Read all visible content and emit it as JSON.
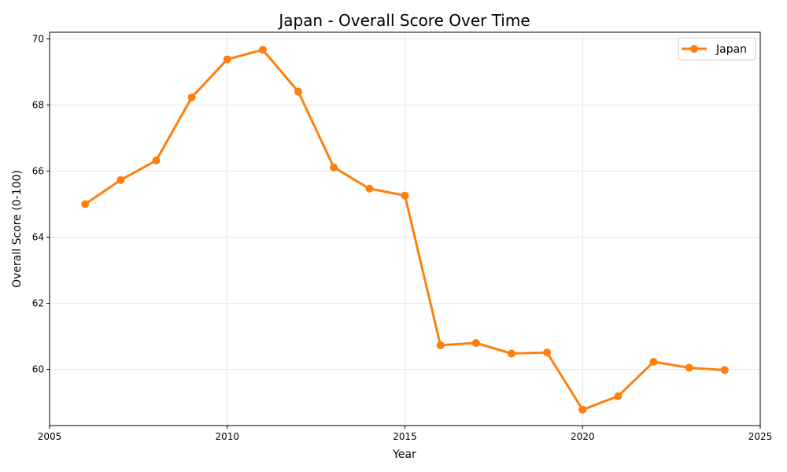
{
  "chart_data": {
    "type": "line",
    "title": "Japan - Overall Score Over Time",
    "xlabel": "Year",
    "ylabel": "Overall Score (0-100)",
    "xlim": [
      2005,
      2025
    ],
    "ylim": [
      58.3,
      70.2
    ],
    "xticks": [
      2005,
      2010,
      2015,
      2020,
      2025
    ],
    "yticks": [
      60,
      62,
      64,
      66,
      68,
      70
    ],
    "grid": true,
    "legend_position": "top-right",
    "series": [
      {
        "name": "Japan",
        "color": "#ff7f0e",
        "x": [
          2006,
          2007,
          2008,
          2009,
          2010,
          2011,
          2012,
          2013,
          2014,
          2015,
          2016,
          2017,
          2018,
          2019,
          2020,
          2021,
          2022,
          2023,
          2024
        ],
        "values": [
          65.0,
          65.73,
          66.32,
          68.23,
          69.38,
          69.67,
          68.4,
          66.11,
          65.47,
          65.26,
          60.73,
          60.8,
          60.48,
          60.51,
          58.78,
          59.19,
          60.23,
          60.05,
          59.98
        ]
      }
    ]
  }
}
